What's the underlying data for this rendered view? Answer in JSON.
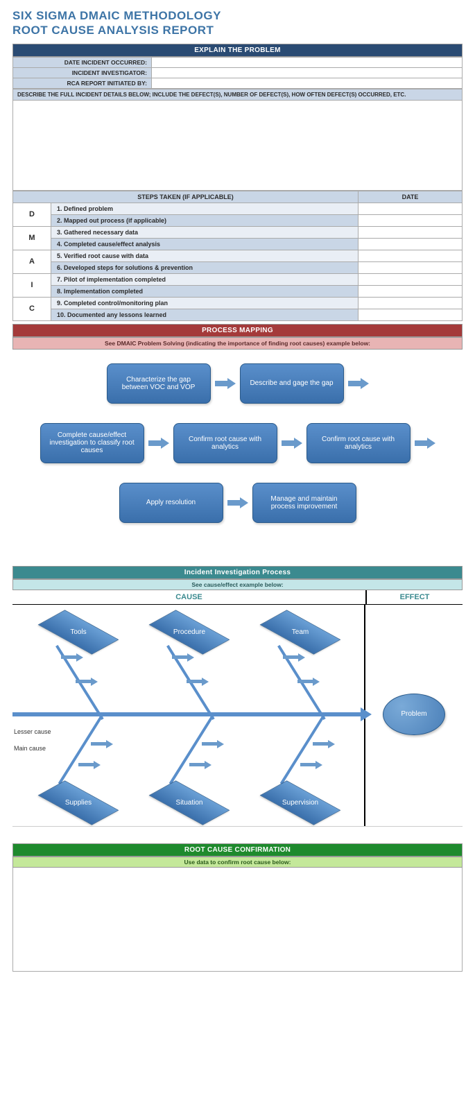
{
  "title": {
    "line1": "SIX SIGMA DMAIC METHODOLOGY",
    "line2": "ROOT CAUSE ANALYSIS REPORT",
    "color": "#3d74a6"
  },
  "colors": {
    "navy": "#2a4b73",
    "red": "#a43a3a",
    "teal": "#3b8a8f",
    "green": "#1e8a2d",
    "row_light": "#e9eef5",
    "row_dark": "#c9d6e6",
    "flow_box": "#3a6fab",
    "arrow": "#6a9acb"
  },
  "section_explain": {
    "header": "EXPLAIN THE PROBLEM",
    "fields": [
      {
        "label": "DATE INCIDENT OCCURRED:",
        "value": ""
      },
      {
        "label": "INCIDENT INVESTIGATOR:",
        "value": ""
      },
      {
        "label": "RCA REPORT INITIATED BY:",
        "value": ""
      }
    ],
    "describe_label": "DESCRIBE THE FULL INCIDENT DETAILS BELOW; INCLUDE THE DEFECT(S), NUMBER OF DEFECT(S), HOW OFTEN DEFECT(S) OCCURRED, ETC.",
    "steps_header": "STEPS TAKEN (IF APPLICABLE)",
    "date_header": "DATE",
    "dmaic_letters": [
      "D",
      "M",
      "A",
      "I",
      "C"
    ],
    "steps": [
      "1. Defined problem",
      "2. Mapped out process (if applicable)",
      "3. Gathered necessary data",
      "4. Completed cause/effect analysis",
      "5. Verified root cause with data",
      "6. Developed steps for solutions & prevention",
      "7. Pilot of implementation completed",
      "8. Implementation completed",
      "9. Completed control/monitoring plan",
      "10. Documented any lessons learned"
    ]
  },
  "section_process": {
    "header": "PROCESS MAPPING",
    "sub": "See DMAIC Problem Solving (indicating the importance of finding root causes) example below:",
    "rows": [
      [
        "Characterize the gap between VOC and VOP",
        "Describe and gage the gap"
      ],
      [
        "Complete cause/effect investigation to classify root causes",
        "Confirm root cause with analytics",
        "Confirm root cause with analytics"
      ],
      [
        "Apply resolution",
        "Manage and maintain process improvement"
      ]
    ]
  },
  "section_incident": {
    "header": "Incident Investigation Process",
    "sub": "See cause/effect example below:",
    "cause_label": "CAUSE",
    "effect_label": "EFFECT",
    "top_categories": [
      "Tools",
      "Procedure",
      "Team"
    ],
    "bottom_categories": [
      "Supplies",
      "Situation",
      "Supervision"
    ],
    "problem_label": "Problem",
    "lesser_label": "Lesser cause",
    "main_label": "Main cause"
  },
  "section_confirm": {
    "header": "ROOT CAUSE CONFIRMATION",
    "sub": "Use data to confirm root cause below:"
  }
}
